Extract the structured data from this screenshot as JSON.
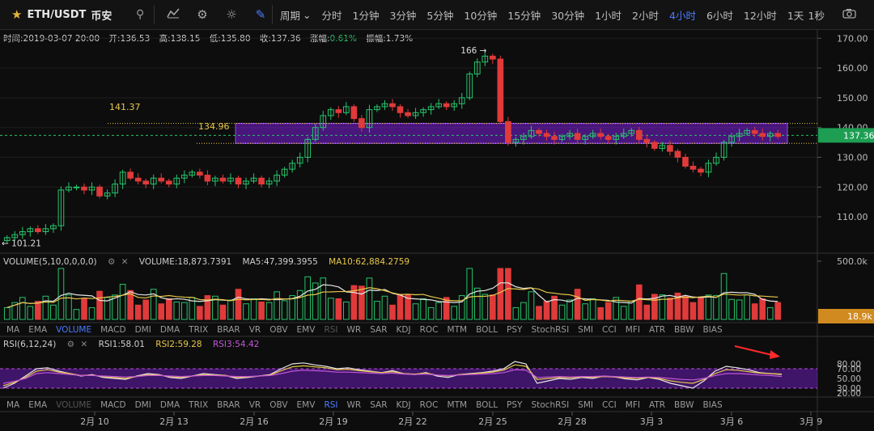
{
  "header": {
    "symbol": "ETH/USDT",
    "exchange": "币安",
    "period_label": "周期",
    "periods": [
      "分时",
      "1分钟",
      "3分钟",
      "5分钟",
      "10分钟",
      "15分钟",
      "30分钟",
      "1小时",
      "2小时",
      "4小时",
      "6小时",
      "12小时",
      "1天"
    ],
    "active_period": "4小时",
    "refresh": "1秒"
  },
  "ohlc": {
    "time_label": "时间:2019-03-07 20:00",
    "open_label": "开:136.53",
    "high_label": "高:138.15",
    "low_label": "低:135.80",
    "close_label": "收:137.36",
    "change_key": "涨幅:",
    "change_val": "0.61%",
    "amp_label": "振幅:1.73%"
  },
  "volume_panel": {
    "title": "VOLUME(5,10,0,0,0,0)",
    "volume": "VOLUME:18,873.7391",
    "ma5": "MA5:47,399.3955",
    "ma10": "MA10:62,884.2759",
    "current_label": "18.9k"
  },
  "rsi_panel": {
    "title": "RSI(6,12,24)",
    "rsi1": "RSI1:58.01",
    "rsi2": "RSI2:59.28",
    "rsi3": "RSI3:54.42"
  },
  "indicator_tabs": [
    "MA",
    "EMA",
    "VOLUME",
    "MACD",
    "DMI",
    "DMA",
    "TRIX",
    "BRAR",
    "VR",
    "OBV",
    "EMV",
    "RSI",
    "WR",
    "SAR",
    "KDJ",
    "ROC",
    "MTM",
    "BOLL",
    "PSY",
    "StochRSI",
    "SMI",
    "CCI",
    "MFI",
    "ATR",
    "BBW",
    "BIAS"
  ],
  "colors": {
    "up": "#27c46b",
    "down": "#e03a3a",
    "accent": "#4a7cff",
    "box": "#7b1fd8",
    "ma_yellow": "#e8c84a",
    "ma_white": "#e6e6e6",
    "rsi_purple": "#c257d8",
    "price_tag": "#1e9e53",
    "vol_tag": "#d08a1f"
  },
  "chart_data": [
    {
      "type": "candlestick",
      "title": "ETH/USDT 4小时",
      "x_ticks": [
        "2月 10",
        "2月 13",
        "2月 16",
        "2月 19",
        "2月 22",
        "2月 25",
        "2月 28",
        "3月 3",
        "3月 6",
        "3月 9"
      ],
      "y_ticks": [
        110,
        120,
        130,
        140,
        150,
        160,
        170
      ],
      "y_tick_labels": [
        "110.00",
        "120.00",
        "130.00",
        "140.00",
        "150.00",
        "160.00",
        "170.00"
      ],
      "ylim": [
        100,
        172
      ],
      "current_price": 137.36,
      "current_price_label": "137.36",
      "annotations": [
        {
          "text": "166",
          "value": 166
        },
        {
          "text": "101.21",
          "value": 101.21
        },
        {
          "text": "141.37",
          "value": 141.37
        },
        {
          "text": "134.96",
          "value": 134.96
        }
      ],
      "zone": {
        "low": 134.96,
        "high": 141.37
      },
      "closes": [
        103,
        104,
        105,
        106,
        105,
        106,
        107,
        119,
        120,
        120,
        119,
        120,
        117,
        118,
        121,
        125,
        123,
        122,
        121,
        123,
        122,
        121,
        123,
        124,
        125,
        124,
        122,
        123,
        122,
        123,
        121,
        122,
        123,
        121,
        122,
        124,
        126,
        128,
        130,
        136,
        140,
        144,
        146,
        145,
        147,
        143,
        140,
        146,
        147,
        148,
        147,
        145,
        144,
        145,
        146,
        147,
        148,
        147,
        148,
        150,
        158,
        162,
        164,
        163,
        142,
        135,
        136,
        137,
        139,
        138,
        137,
        136,
        137,
        138,
        136,
        137,
        138,
        137,
        136,
        137,
        138,
        139,
        136,
        135,
        133,
        134,
        132,
        130,
        127,
        126,
        125,
        128,
        130,
        135,
        137,
        138,
        139,
        138,
        137,
        138,
        137
      ]
    },
    {
      "type": "bar",
      "title": "VOLUME",
      "y_tick_label": "500.0k",
      "ylim": [
        0,
        500000
      ]
    },
    {
      "type": "line",
      "title": "RSI(6,12,24)",
      "y_tick_labels": [
        "80.00",
        "70.00",
        "50.00",
        "30.00",
        "20.00"
      ],
      "ylim": [
        15,
        95
      ],
      "series": [
        {
          "name": "RSI1",
          "values": [
            30,
            40,
            55,
            70,
            72,
            65,
            60,
            55,
            58,
            52,
            50,
            48,
            55,
            60,
            58,
            52,
            50,
            55,
            60,
            58,
            56,
            50,
            52,
            55,
            58,
            70,
            80,
            82,
            78,
            75,
            70,
            72,
            68,
            65,
            62,
            66,
            60,
            58,
            62,
            55,
            52,
            58,
            60,
            62,
            65,
            70,
            85,
            80,
            40,
            45,
            50,
            48,
            52,
            50,
            55,
            53,
            49,
            47,
            52,
            48,
            40,
            35,
            30,
            45,
            65,
            75,
            72,
            68,
            62,
            60,
            58
          ]
        },
        {
          "name": "RSI2",
          "values": [
            35,
            42,
            52,
            65,
            68,
            63,
            60,
            56,
            57,
            54,
            52,
            50,
            54,
            58,
            57,
            54,
            52,
            55,
            58,
            57,
            56,
            52,
            53,
            55,
            57,
            66,
            74,
            76,
            74,
            72,
            68,
            69,
            66,
            64,
            62,
            64,
            60,
            59,
            61,
            57,
            55,
            58,
            59,
            61,
            63,
            67,
            78,
            75,
            48,
            50,
            52,
            51,
            53,
            52,
            54,
            53,
            51,
            50,
            52,
            50,
            45,
            42,
            40,
            48,
            60,
            68,
            67,
            64,
            61,
            60,
            59
          ]
        },
        {
          "name": "RSI3",
          "values": [
            40,
            44,
            50,
            60,
            62,
            60,
            58,
            56,
            56,
            55,
            54,
            53,
            54,
            56,
            56,
            55,
            54,
            55,
            56,
            56,
            55,
            54,
            54,
            55,
            56,
            60,
            65,
            67,
            66,
            65,
            63,
            63,
            62,
            61,
            60,
            61,
            59,
            58,
            59,
            57,
            56,
            57,
            58,
            59,
            60,
            62,
            68,
            67,
            52,
            53,
            54,
            53,
            54,
            54,
            55,
            54,
            53,
            52,
            53,
            52,
            50,
            48,
            47,
            50,
            56,
            60,
            60,
            59,
            57,
            56,
            54
          ]
        }
      ]
    }
  ]
}
